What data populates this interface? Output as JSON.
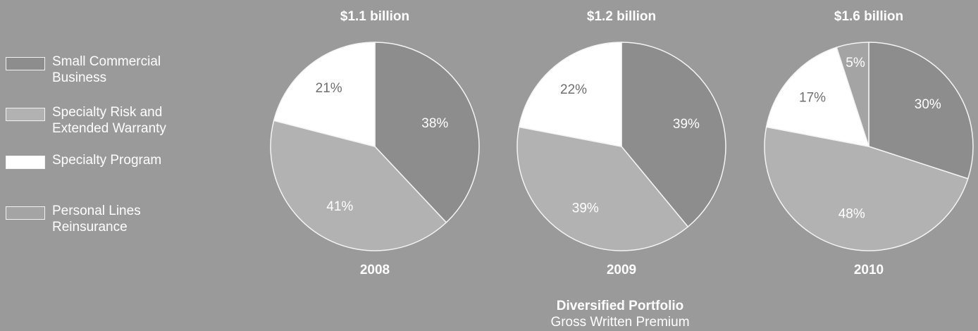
{
  "chart_data": {
    "type": "pie",
    "title": "Diversified Portfolio",
    "subtitle": "Gross Written Premium",
    "legend": [
      {
        "name": "Small Commercial\nBusiness",
        "color": "#8d8d8d"
      },
      {
        "name": "Specialty Risk and\nExtended Warranty",
        "color": "#b2b2b2"
      },
      {
        "name": "Specialty Program",
        "color": "#ffffff"
      },
      {
        "name": "Personal Lines\nReinsurance",
        "color": "#a4a4a4"
      }
    ],
    "charts": [
      {
        "year": "2008",
        "total": "$1.1 billion",
        "slices": [
          {
            "category": "Small Commercial Business",
            "value": 38,
            "label": "38%"
          },
          {
            "category": "Specialty Risk and Extended Warranty",
            "value": 41,
            "label": "41%"
          },
          {
            "category": "Specialty Program",
            "value": 21,
            "label": "21%"
          }
        ]
      },
      {
        "year": "2009",
        "total": "$1.2 billion",
        "slices": [
          {
            "category": "Small Commercial Business",
            "value": 39,
            "label": "39%"
          },
          {
            "category": "Specialty Risk and Extended Warranty",
            "value": 39,
            "label": "39%"
          },
          {
            "category": "Specialty Program",
            "value": 22,
            "label": "22%"
          }
        ]
      },
      {
        "year": "2010",
        "total": "$1.6 billion",
        "slices": [
          {
            "category": "Small Commercial Business",
            "value": 30,
            "label": "30%"
          },
          {
            "category": "Specialty Risk and Extended Warranty",
            "value": 48,
            "label": "48%"
          },
          {
            "category": "Specialty Program",
            "value": 17,
            "label": "17%"
          },
          {
            "category": "Personal Lines Reinsurance",
            "value": 5,
            "label": "5%"
          }
        ]
      }
    ]
  }
}
